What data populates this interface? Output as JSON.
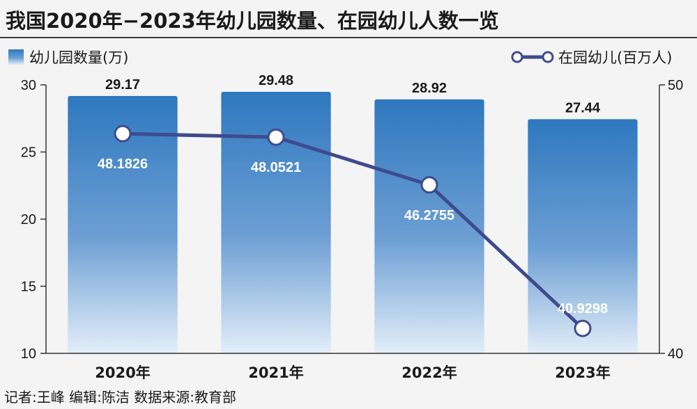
{
  "title": "我国2020年−2023年幼儿园数量、在园幼儿人数一览",
  "footer": "记者:王峰   编辑:陈洁   数据来源:教育部",
  "colors": {
    "bar_top": "#2e78bf",
    "bar_bottom": "#e3eef9",
    "line": "#3f4a8e",
    "title_rule": "#3a3a3a"
  },
  "chart_data": {
    "type": "bar+line",
    "categories": [
      "2020年",
      "2021年",
      "2022年",
      "2023年"
    ],
    "series": [
      {
        "name": "幼儿园数量(万)",
        "type": "bar",
        "axis": "left",
        "values": [
          29.17,
          29.48,
          28.92,
          27.44
        ],
        "labels": [
          "29.17",
          "29.48",
          "28.92",
          "27.44"
        ]
      },
      {
        "name": "在园幼儿(百万人)",
        "type": "line",
        "axis": "right",
        "values": [
          48.1826,
          48.0521,
          46.2755,
          40.9298
        ],
        "labels": [
          "48.1826",
          "48.0521",
          "46.2755",
          "40.9298"
        ]
      }
    ],
    "y_left": {
      "min": 10,
      "max": 30,
      "ticks": [
        "10",
        "15",
        "20",
        "25",
        "30"
      ]
    },
    "y_right": {
      "min": 40,
      "max": 50,
      "ticks": [
        "40",
        "50"
      ]
    },
    "legend": {
      "position": "top"
    },
    "grid": false
  }
}
